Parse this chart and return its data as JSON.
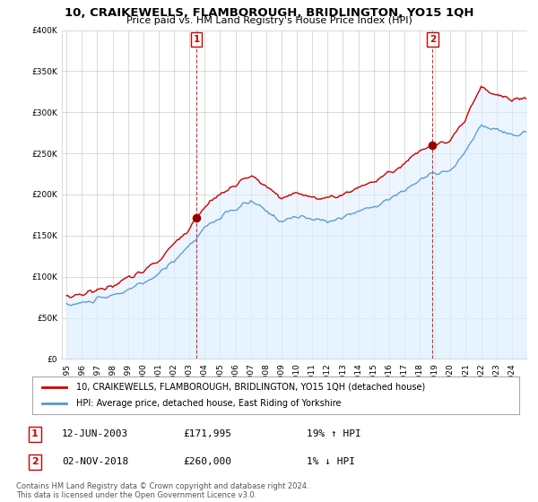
{
  "title": "10, CRAIKEWELLS, FLAMBOROUGH, BRIDLINGTON, YO15 1QH",
  "subtitle": "Price paid vs. HM Land Registry's House Price Index (HPI)",
  "legend_line1": "10, CRAIKEWELLS, FLAMBOROUGH, BRIDLINGTON, YO15 1QH (detached house)",
  "legend_line2": "HPI: Average price, detached house, East Riding of Yorkshire",
  "sale1_label": "1",
  "sale1_date": "12-JUN-2003",
  "sale1_price": "£171,995",
  "sale1_hpi": "19% ↑ HPI",
  "sale2_label": "2",
  "sale2_date": "02-NOV-2018",
  "sale2_price": "£260,000",
  "sale2_hpi": "1% ↓ HPI",
  "footer": "Contains HM Land Registry data © Crown copyright and database right 2024.\nThis data is licensed under the Open Government Licence v3.0.",
  "property_color": "#cc0000",
  "hpi_color": "#5599cc",
  "hpi_fill_color": "#ddeeff",
  "sale_dot_color": "#990000",
  "background_color": "#ffffff",
  "ylim": [
    0,
    400000
  ],
  "yticks": [
    0,
    50000,
    100000,
    150000,
    200000,
    250000,
    300000,
    350000,
    400000
  ],
  "sale1_year_f": 2003.458,
  "sale1_val": 171995,
  "sale2_year_f": 2018.833,
  "sale2_val": 260000
}
